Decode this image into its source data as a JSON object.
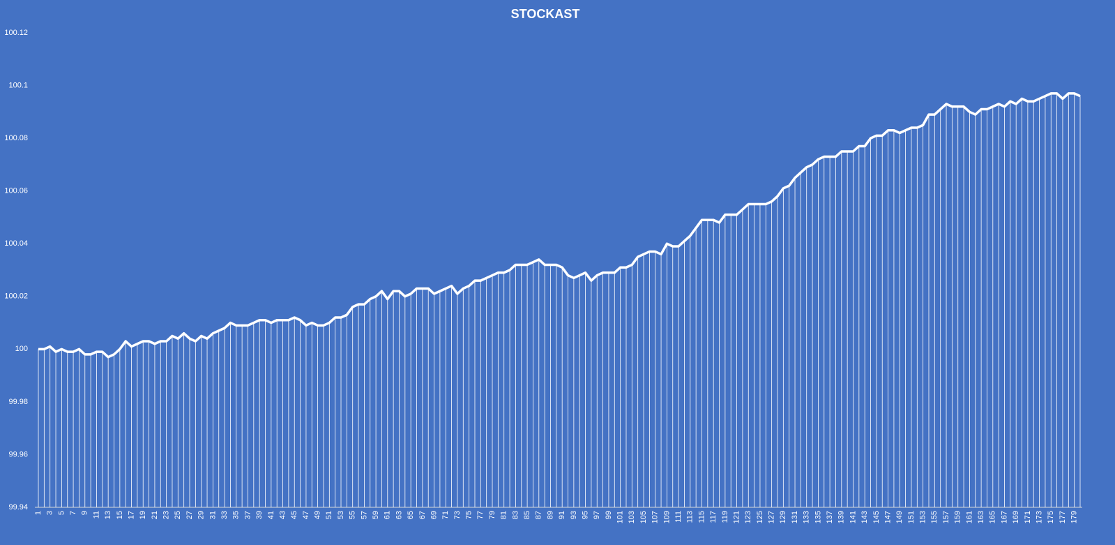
{
  "chart_data": {
    "type": "line",
    "title": "STOCKAST",
    "categories": [
      "1",
      null,
      "3",
      null,
      "5",
      null,
      "7",
      null,
      "9",
      null,
      "11",
      null,
      "13",
      null,
      "15",
      null,
      "17",
      null,
      "19",
      null,
      "21",
      null,
      "23",
      null,
      "25",
      null,
      "27",
      null,
      "29",
      null,
      "31",
      null,
      "33",
      null,
      "35",
      null,
      "37",
      null,
      "39",
      null,
      "41",
      null,
      "43",
      null,
      "45",
      null,
      "47",
      null,
      "49",
      null,
      "51",
      null,
      "53",
      null,
      "55",
      null,
      "57",
      null,
      "59",
      null,
      "61",
      null,
      "63",
      null,
      "65",
      null,
      "67",
      null,
      "69",
      null,
      "71",
      null,
      "73",
      null,
      "75",
      null,
      "77",
      null,
      "79",
      null,
      "81",
      null,
      "83",
      null,
      "85",
      null,
      "87",
      null,
      "89",
      null,
      "91",
      null,
      "93",
      null,
      "95",
      null,
      "97",
      null,
      "99",
      null,
      "101",
      null,
      "103",
      null,
      "105",
      null,
      "107",
      null,
      "109",
      null,
      "111",
      null,
      "113",
      null,
      "115",
      null,
      "117",
      null,
      "119",
      null,
      "121",
      null,
      "123",
      null,
      "125",
      null,
      "127",
      null,
      "129",
      null,
      "131",
      null,
      "133",
      null,
      "135",
      null,
      "137",
      null,
      "139",
      null,
      "141",
      null,
      "143",
      null,
      "145",
      null,
      "147",
      null,
      "149",
      null,
      "151",
      null,
      "153",
      null,
      "155",
      null,
      "157",
      null,
      "159",
      null,
      "161",
      null,
      "163",
      null,
      "165",
      null,
      "167",
      null,
      "169",
      null,
      "171",
      null,
      "173",
      null,
      "175",
      null,
      "177",
      null,
      "179",
      null
    ],
    "values": [
      100.0,
      100.0,
      100.001,
      99.999,
      100.0,
      99.999,
      99.999,
      100.0,
      99.998,
      99.998,
      99.999,
      99.999,
      99.997,
      99.998,
      100.0,
      100.003,
      100.001,
      100.002,
      100.003,
      100.003,
      100.002,
      100.003,
      100.003,
      100.005,
      100.004,
      100.006,
      100.004,
      100.003,
      100.005,
      100.004,
      100.006,
      100.007,
      100.008,
      100.01,
      100.009,
      100.009,
      100.009,
      100.01,
      100.011,
      100.011,
      100.01,
      100.011,
      100.011,
      100.011,
      100.012,
      100.011,
      100.009,
      100.01,
      100.009,
      100.009,
      100.01,
      100.012,
      100.012,
      100.013,
      100.016,
      100.017,
      100.017,
      100.019,
      100.02,
      100.022,
      100.019,
      100.022,
      100.022,
      100.02,
      100.021,
      100.023,
      100.023,
      100.023,
      100.021,
      100.022,
      100.023,
      100.024,
      100.021,
      100.023,
      100.024,
      100.026,
      100.026,
      100.027,
      100.028,
      100.029,
      100.029,
      100.03,
      100.032,
      100.032,
      100.032,
      100.033,
      100.034,
      100.032,
      100.032,
      100.032,
      100.031,
      100.028,
      100.027,
      100.028,
      100.029,
      100.026,
      100.028,
      100.029,
      100.029,
      100.029,
      100.031,
      100.031,
      100.032,
      100.035,
      100.036,
      100.037,
      100.037,
      100.036,
      100.04,
      100.039,
      100.039,
      100.041,
      100.043,
      100.046,
      100.049,
      100.049,
      100.049,
      100.048,
      100.051,
      100.051,
      100.051,
      100.053,
      100.055,
      100.055,
      100.055,
      100.055,
      100.056,
      100.058,
      100.061,
      100.062,
      100.065,
      100.067,
      100.069,
      100.07,
      100.072,
      100.073,
      100.073,
      100.073,
      100.075,
      100.075,
      100.075,
      100.077,
      100.077,
      100.08,
      100.081,
      100.081,
      100.083,
      100.083,
      100.082,
      100.083,
      100.084,
      100.084,
      100.085,
      100.089,
      100.089,
      100.091,
      100.093,
      100.092,
      100.092,
      100.092,
      100.09,
      100.089,
      100.091,
      100.091,
      100.092,
      100.093,
      100.092,
      100.094,
      100.093,
      100.095,
      100.094,
      100.094,
      100.095,
      100.096,
      100.097,
      100.097,
      100.095,
      100.097,
      100.097,
      100.096
    ],
    "color": "#ffffff",
    "drop_lines": true,
    "grid": false,
    "ylim": [
      99.94,
      100.12
    ],
    "yticks": [
      99.94,
      99.96,
      99.98,
      100,
      100.02,
      100.04,
      100.06,
      100.08,
      100.1,
      100.12
    ]
  }
}
